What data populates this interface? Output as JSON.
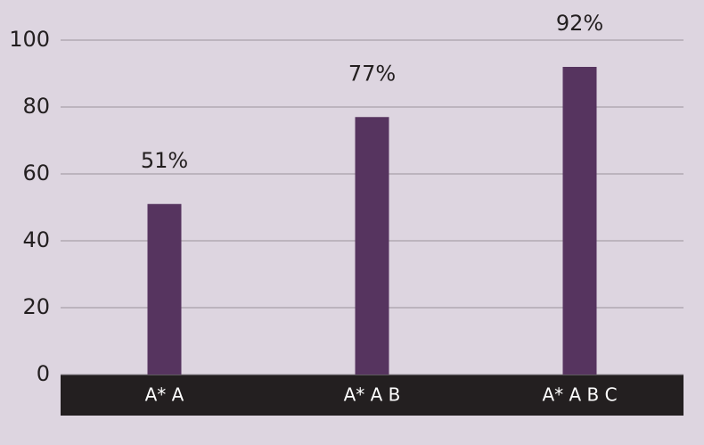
{
  "chart_data": {
    "type": "bar",
    "categories": [
      "A* A",
      "A* A B",
      "A* A B C"
    ],
    "values": [
      51,
      77,
      92
    ],
    "value_labels": [
      "51%",
      "77%",
      "92%"
    ],
    "color": "#56345f",
    "ylim": [
      0,
      100
    ],
    "yticks": [
      0,
      20,
      40,
      60,
      80,
      100
    ],
    "grid": true
  }
}
